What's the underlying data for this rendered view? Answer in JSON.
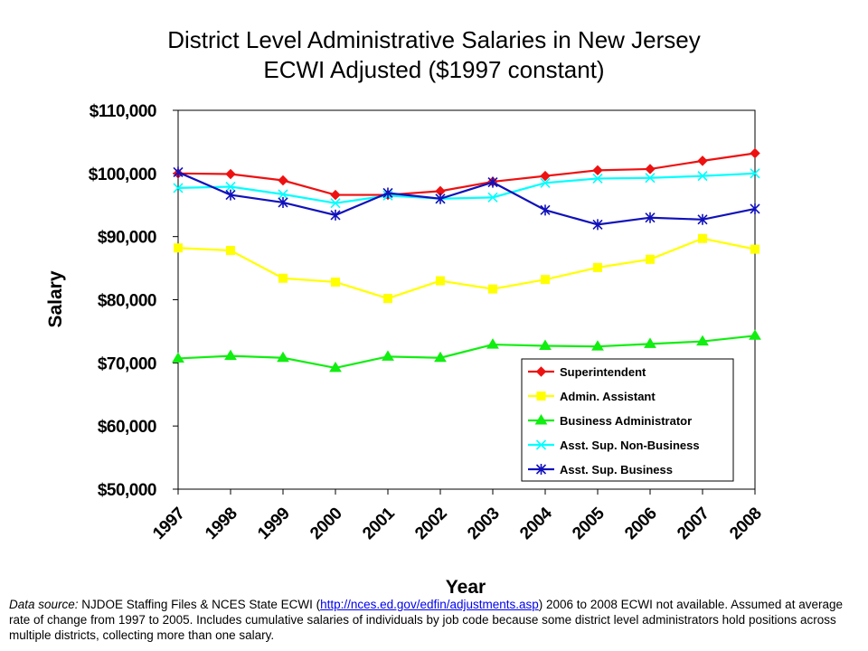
{
  "chart_data": {
    "type": "line",
    "title": "District Level Administrative Salaries in New Jersey",
    "subtitle": "ECWI Adjusted ($1997 constant)",
    "xlabel": "Year",
    "ylabel": "Salary",
    "ylim": [
      50000,
      110000
    ],
    "ytick_values": [
      50000,
      60000,
      70000,
      80000,
      90000,
      100000,
      110000
    ],
    "ytick_labels": [
      "$50,000",
      "$60,000",
      "$70,000",
      "$80,000",
      "$90,000",
      "$100,000",
      "$110,000"
    ],
    "categories": [
      "1997",
      "1998",
      "1999",
      "2000",
      "2001",
      "2002",
      "2003",
      "2004",
      "2005",
      "2006",
      "2007",
      "2008"
    ],
    "grid": false,
    "legend_position": "bottom-right",
    "series": [
      {
        "name": "Superintendent",
        "color": "#ee1111",
        "marker": "diamond",
        "values": [
          100000,
          99900,
          98900,
          96600,
          96600,
          97200,
          98700,
          99600,
          100500,
          100700,
          102000,
          103200
        ]
      },
      {
        "name": "Admin. Assistant",
        "color": "#ffff00",
        "marker": "square",
        "values": [
          88200,
          87800,
          83400,
          82800,
          80200,
          83000,
          81700,
          83200,
          85100,
          86400,
          89700,
          88000
        ]
      },
      {
        "name": "Business Administrator",
        "color": "#11ee11",
        "marker": "triangle",
        "values": [
          70700,
          71100,
          70800,
          69200,
          71000,
          70800,
          72900,
          72700,
          72600,
          73000,
          73400,
          74300
        ]
      },
      {
        "name": "Asst. Sup. Non-Business",
        "color": "#00ffff",
        "marker": "x",
        "values": [
          97700,
          97900,
          96700,
          95300,
          96500,
          96000,
          96200,
          98500,
          99200,
          99300,
          99600,
          100000
        ]
      },
      {
        "name": "Asst. Sup. Business",
        "color": "#1111bb",
        "marker": "star",
        "values": [
          100200,
          96600,
          95400,
          93400,
          96900,
          96000,
          98600,
          94200,
          91900,
          93000,
          92700,
          94400
        ]
      }
    ]
  },
  "footnote": {
    "source_label": "Data source:",
    "source_text": " NJDOE Staffing Files & NCES State ECWI (",
    "link_text": "http://nces.ed.gov/edfin/adjustments.asp",
    "after_link": ") 2006 to 2008 ECWI not available. Assumed at average rate of change from 1997 to 2005. Includes cumulative salaries of individuals by job code because some district level administrators hold positions across multiple districts, collecting more than one salary."
  }
}
